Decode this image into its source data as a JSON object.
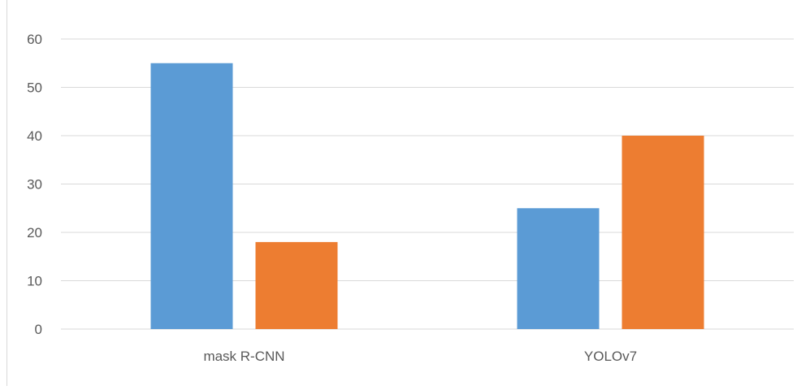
{
  "chart_data": {
    "type": "bar",
    "categories": [
      "mask R-CNN",
      "YOLOv7"
    ],
    "series": [
      {
        "values": [
          55,
          25
        ],
        "color": "#5b9bd5"
      },
      {
        "values": [
          18,
          40
        ],
        "color": "#ed7d31"
      }
    ],
    "yticks": [
      "0",
      "10",
      "20",
      "30",
      "40",
      "50",
      "60"
    ],
    "ylim": [
      0,
      60
    ],
    "grid": true,
    "legend": "none",
    "colors": {
      "gridline": "#d9d9d9",
      "axis": "#d9d9d9",
      "tick_text": "#595959"
    }
  }
}
